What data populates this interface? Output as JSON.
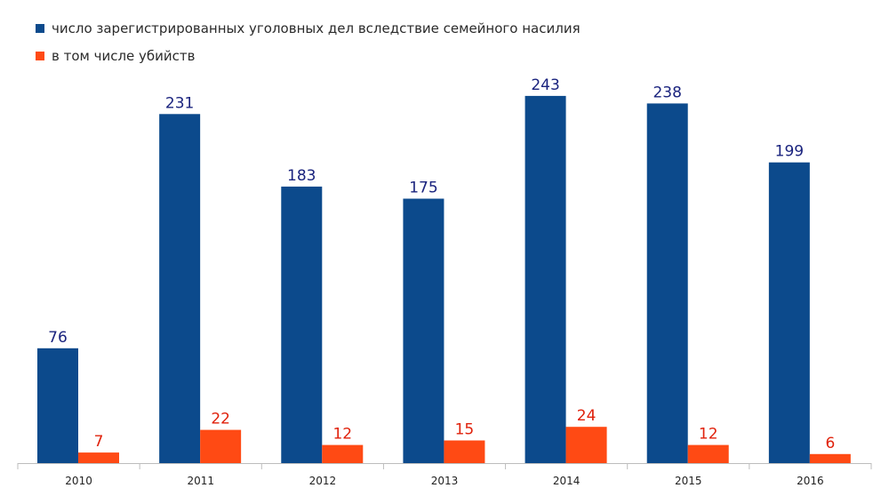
{
  "chart_data": {
    "type": "bar",
    "categories": [
      "2010",
      "2011",
      "2012",
      "2013",
      "2014",
      "2015",
      "2016"
    ],
    "series": [
      {
        "name": "число зарегистрированных уголовных дел вследствие семейного насилия",
        "values": [
          76,
          231,
          183,
          175,
          243,
          238,
          199
        ],
        "color": "#0c4a8c",
        "label_color": "#1a237e"
      },
      {
        "name": "в том числе убийств",
        "values": [
          7,
          22,
          12,
          15,
          24,
          12,
          6
        ],
        "color": "#ff4a14",
        "label_color": "#e0210b"
      }
    ],
    "ylim": [
      0,
      260
    ],
    "grid": false,
    "legend_position": "top-left"
  }
}
